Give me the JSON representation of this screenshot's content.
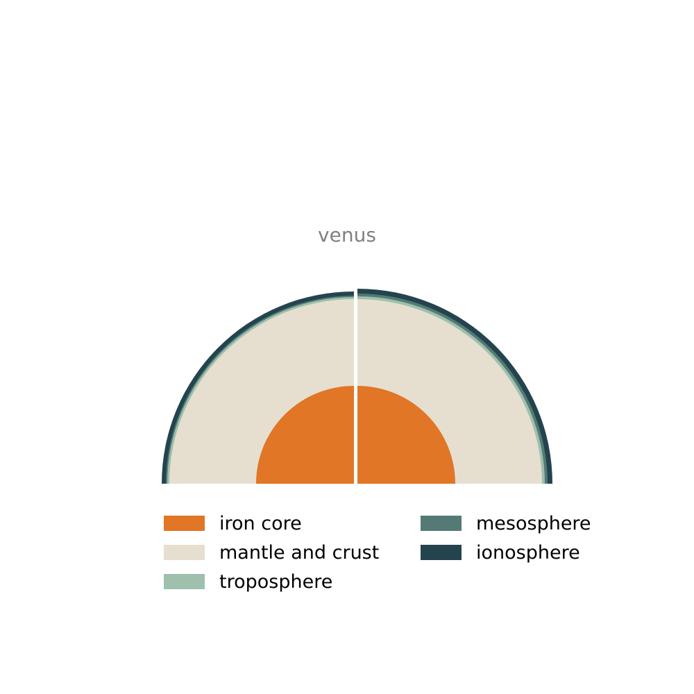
{
  "title": "venus",
  "layers": [
    {
      "name": "iron core",
      "color": "#e07626"
    },
    {
      "name": "mantle and crust",
      "color": "#e6dfd0"
    },
    {
      "name": "troposphere",
      "color": "#9ec0ad"
    },
    {
      "name": "mesosphere",
      "color": "#557a75"
    },
    {
      "name": "ionosphere",
      "color": "#23444f"
    }
  ],
  "legend": {
    "items": [
      {
        "label": "iron core",
        "color": "#e07626"
      },
      {
        "label": "mantle and crust",
        "color": "#e6dfd0"
      },
      {
        "label": "troposphere",
        "color": "#9ec0ad"
      },
      {
        "label": "mesosphere",
        "color": "#557a75"
      },
      {
        "label": "ionosphere",
        "color": "#23444f"
      }
    ]
  }
}
